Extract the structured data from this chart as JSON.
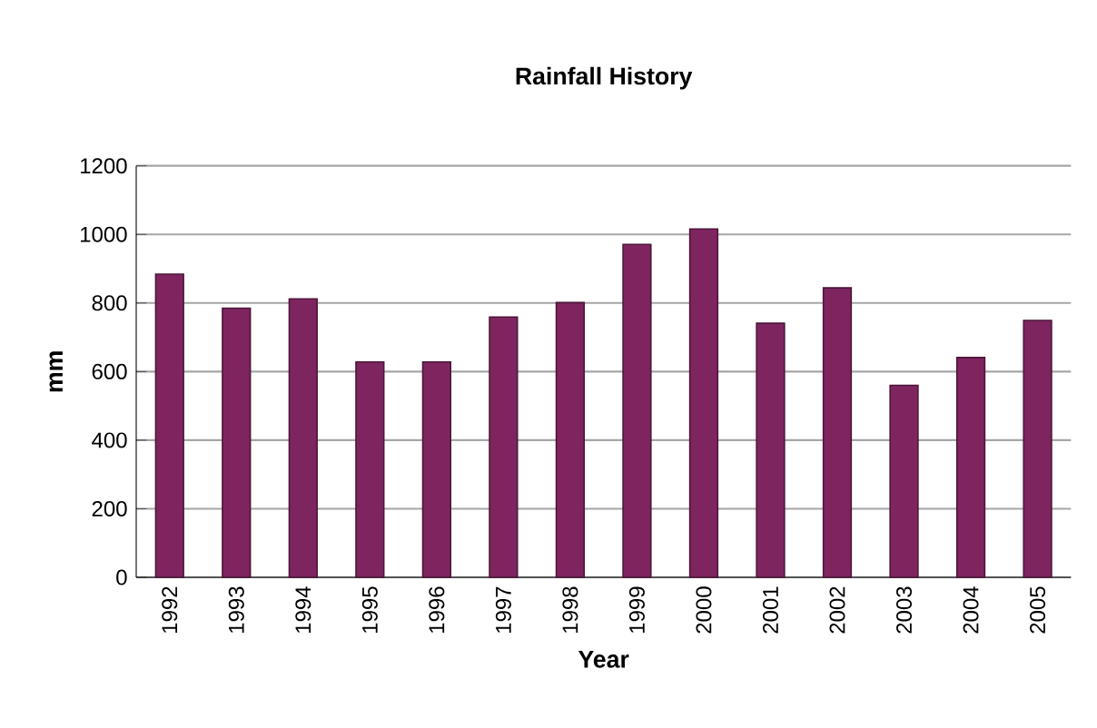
{
  "chart_data": {
    "type": "bar",
    "title": "Rainfall History",
    "xlabel": "Year",
    "ylabel": "mm",
    "categories": [
      "1992",
      "1993",
      "1994",
      "1995",
      "1996",
      "1997",
      "1998",
      "1999",
      "2000",
      "2001",
      "2002",
      "2003",
      "2004",
      "2005"
    ],
    "values": [
      884,
      785,
      812,
      628,
      628,
      759,
      801,
      971,
      1016,
      741,
      844,
      560,
      641,
      749
    ],
    "color": "#7e2560",
    "ylim": [
      0,
      1200
    ],
    "yticks": [
      0,
      200,
      400,
      600,
      800,
      1000,
      1200
    ],
    "grid": "y"
  }
}
